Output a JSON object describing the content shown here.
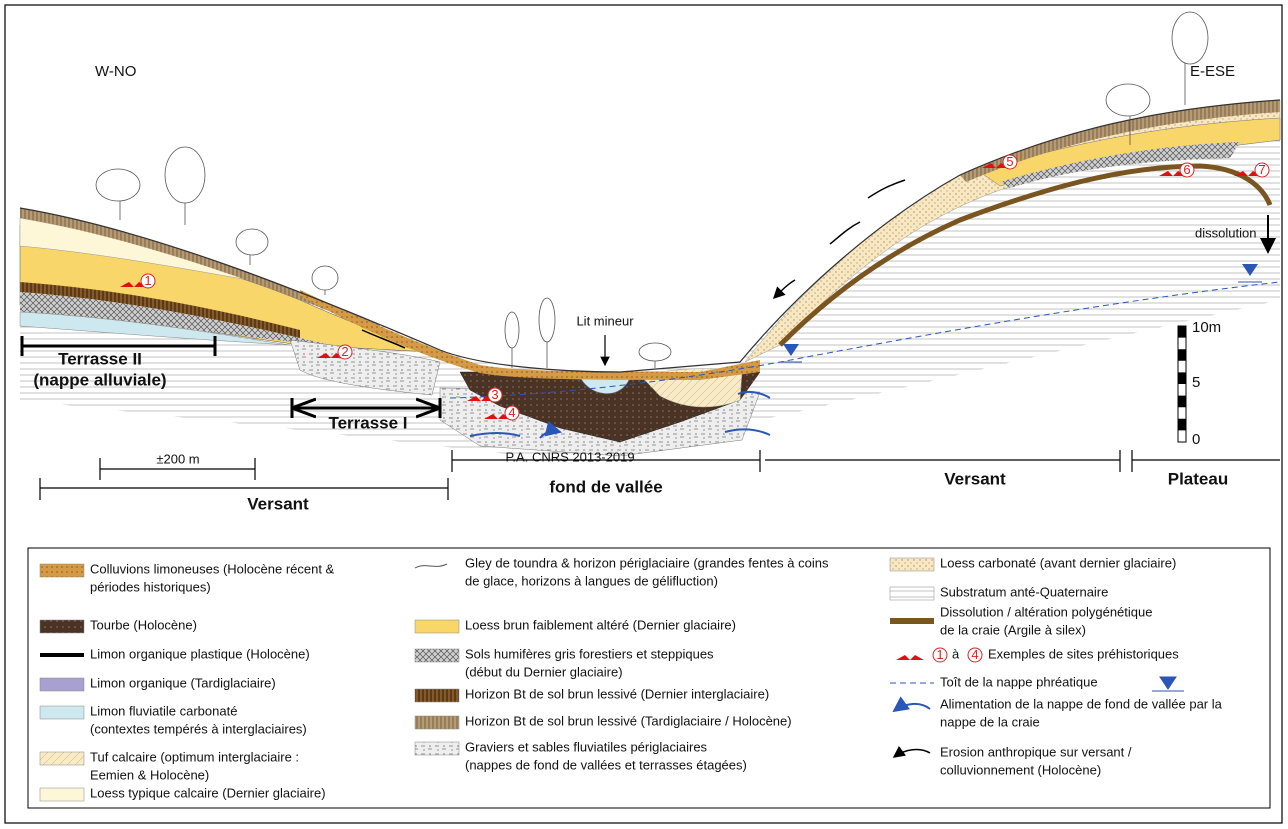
{
  "orientation": {
    "left": "W-NO",
    "right": "E-ESE"
  },
  "labels": {
    "lit_mineur": "Lit mineur",
    "dissolution": "dissolution",
    "terrasse_2": [
      "Terrasse II",
      "(nappe alluviale)"
    ],
    "terrasse_1": "Terrasse I",
    "distance": "±200 m",
    "versant_left": "Versant",
    "fond": "fond de vallée",
    "versant_right": "Versant",
    "plateau": "Plateau",
    "credit": "P.A. CNRS 2013-2019"
  },
  "scale": {
    "top": "10m",
    "mid": "5",
    "bottom": "0"
  },
  "sites": [
    "1",
    "2",
    "3",
    "4",
    "5",
    "6",
    "7"
  ],
  "legend": {
    "columns": [
      {
        "items": [
          {
            "lines": [
              "Colluvions limoneuses (Holocène récent &",
              "périodes historiques)"
            ]
          },
          {
            "lines": [
              "Tourbe (Holocène)"
            ]
          },
          {
            "lines": [
              "Limon organique plastique (Holocène)"
            ]
          },
          {
            "lines": [
              "Limon organique (Tardiglaciaire)"
            ]
          },
          {
            "lines": [
              "Limon fluviatile carbonaté",
              "(contextes tempérés à interglaciaires)"
            ]
          },
          {
            "lines": [
              "Tuf calcaire (optimum interglaciaire :",
              "Eemien & Holocène)"
            ]
          },
          {
            "lines": [
              "Loess typique calcaire  (Dernier glaciaire)"
            ]
          }
        ]
      },
      {
        "items": [
          {
            "lines": [
              "Gley de toundra & horizon périglaciaire (grandes fentes à coins",
              "de glace, horizons à langues de gélifluction)"
            ]
          },
          {
            "lines": [
              "Loess brun faiblement altéré (Dernier glaciaire)"
            ]
          },
          {
            "lines": [
              "Sols humifères gris forestiers et steppiques",
              "(début du Dernier glaciaire)"
            ]
          },
          {
            "lines": [
              "Horizon Bt de sol brun lessivé (Dernier interglaciaire)"
            ]
          },
          {
            "lines": [
              "Horizon Bt de sol brun lessivé (Tardiglaciaire / Holocène)"
            ]
          },
          {
            "lines": [
              "Graviers et sables fluviatiles périglaciaires",
              "(nappes de fond de vallées et terrasses étagées)"
            ]
          }
        ]
      },
      {
        "items": [
          {
            "lines": [
              "Loess carbonaté (avant dernier glaciaire)"
            ]
          },
          {
            "lines": [
              "Substratum anté-Quaternaire"
            ]
          },
          {
            "lines": [
              "Dissolution / altération polygénétique",
              "de la craie (Argile à silex)"
            ]
          },
          {
            "from": "1",
            "connector": "à",
            "to": "4",
            "lines": [
              "Exemples de sites préhistoriques"
            ]
          },
          {
            "lines": [
              "Toît de la nappe phréatique"
            ]
          },
          {
            "lines": [
              "Alimentation de la nappe de fond de vallée par la",
              "nappe de la craie"
            ]
          },
          {
            "lines": [
              "Erosion anthropique sur versant /",
              "colluvionnement (Holocène)"
            ]
          }
        ]
      }
    ]
  }
}
